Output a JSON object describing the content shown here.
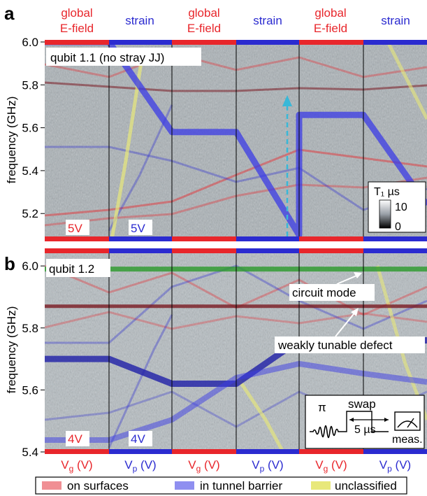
{
  "panel_letters": [
    "a",
    "b"
  ],
  "top_labels": [
    {
      "line1": "global",
      "line2": "E-field",
      "color": "#e8262b"
    },
    {
      "line1": "strain",
      "line2": "",
      "color": "#2b2bd0"
    },
    {
      "line1": "global",
      "line2": "E-field",
      "color": "#e8262b"
    },
    {
      "line1": "strain",
      "line2": "",
      "color": "#2b2bd0"
    },
    {
      "line1": "global",
      "line2": "E-field",
      "color": "#e8262b"
    },
    {
      "line1": "strain",
      "line2": "",
      "color": "#2b2bd0"
    }
  ],
  "bottom_labels": [
    {
      "text": "V_g (V)",
      "color": "#e8262b"
    },
    {
      "text": "V_p (V)",
      "color": "#2b2bd0"
    },
    {
      "text": "V_g (V)",
      "color": "#e8262b"
    },
    {
      "text": "V_p (V)",
      "color": "#2b2bd0"
    },
    {
      "text": "V_g (V)",
      "color": "#e8262b"
    },
    {
      "text": "V_p (V)",
      "color": "#2b2bd0"
    }
  ],
  "legend": [
    {
      "label": "on surfaces",
      "color": "#f08f94"
    },
    {
      "label": "in tunnel barrier",
      "color": "#8f8ff0"
    },
    {
      "label": "unclassified",
      "color": "#e8e87a"
    }
  ],
  "colors": {
    "efield": "#e8262b",
    "strain": "#2b2bd0",
    "green_mode": "#2a9a2a",
    "dark_red": "#7a1a22"
  },
  "chart_data": [
    {
      "type": "heatmap",
      "panel": "a",
      "annotation": "qubit 1.1 (no stray JJ)",
      "ylabel": "frequency (GHz)",
      "ylim": [
        5.08,
        6.0
      ],
      "yticks": [
        "6.0",
        "5.8",
        "5.6",
        "5.4",
        "5.2"
      ],
      "yticks_values": [
        6.0,
        5.8,
        5.6,
        5.4,
        5.2
      ],
      "sweep_amplitudes": [
        {
          "text": "5V",
          "color": "#e8262b"
        },
        {
          "text": "5V",
          "color": "#2b2bd0"
        }
      ],
      "colorbar": {
        "label": "T₁ µs",
        "max": "10",
        "min": "0"
      },
      "qubit_path": [
        {
          "seg": 0,
          "f": [
            6.0,
            6.0
          ]
        },
        {
          "seg": 1,
          "f": [
            6.0,
            5.58
          ]
        },
        {
          "seg": 2,
          "f": [
            5.58,
            5.58
          ]
        },
        {
          "seg": 3,
          "f": [
            5.58,
            5.1
          ]
        },
        {
          "seg": 4,
          "f": [
            5.66,
            5.66
          ]
        },
        {
          "seg": 5,
          "f": [
            5.66,
            5.24
          ]
        }
      ],
      "arrow_value": 5.78
    },
    {
      "type": "heatmap",
      "panel": "b",
      "annotation": "qubit 1.2",
      "ylabel": "frequency (GHz)",
      "ylim": [
        5.4,
        6.05
      ],
      "yticks": [
        "6.0",
        "5.8",
        "5.6",
        "5.4"
      ],
      "yticks_values": [
        6.0,
        5.8,
        5.6,
        5.4
      ],
      "sweep_amplitudes": [
        {
          "text": "4V",
          "color": "#e8262b"
        },
        {
          "text": "4V",
          "color": "#2b2bd0"
        }
      ],
      "annotations": [
        "circuit mode",
        "weakly tunable defect"
      ],
      "circuit_mode_freq": 5.99,
      "weakly_tunable_defect_freq": 5.87,
      "qubit_path": [
        {
          "seg": 0,
          "f": [
            5.7,
            5.7
          ]
        },
        {
          "seg": 1,
          "f": [
            5.7,
            5.62
          ]
        },
        {
          "seg": 2,
          "f": [
            5.62,
            5.62
          ]
        },
        {
          "seg": 3,
          "f": [
            5.62,
            5.76
          ]
        },
        {
          "seg": 4,
          "f": [
            5.76,
            5.76
          ]
        },
        {
          "seg": 5,
          "f": [
            5.76,
            5.76
          ]
        }
      ],
      "pulse_inset": {
        "pi_label": "π",
        "swap_label": "swap",
        "delay_label": "5 µs",
        "meas_label": "meas."
      }
    }
  ]
}
